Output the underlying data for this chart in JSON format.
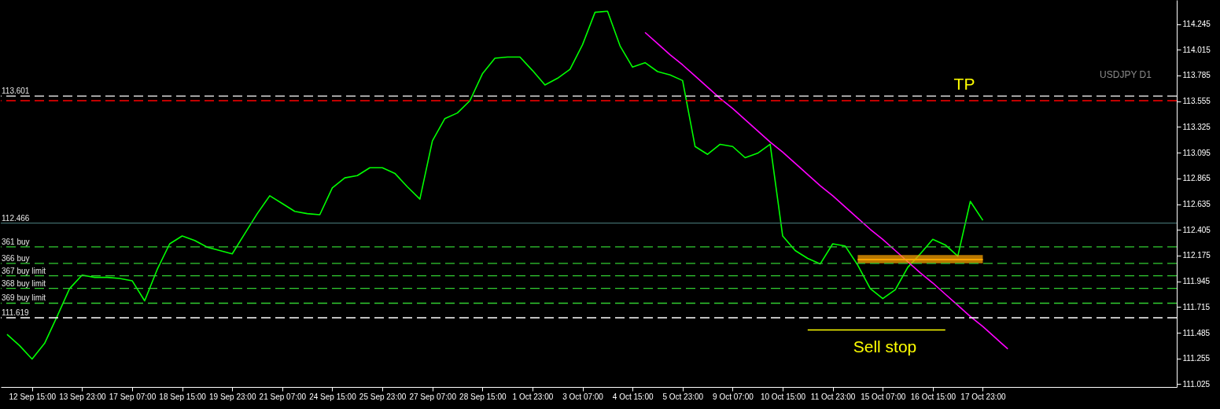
{
  "chart_data": {
    "type": "line",
    "categories": [
      null,
      null,
      "12 Sep 15:00",
      null,
      null,
      null,
      "13 Sep 23:00",
      null,
      null,
      null,
      "17 Sep 07:00",
      null,
      null,
      null,
      "18 Sep 15:00",
      null,
      null,
      null,
      "19 Sep 23:00",
      null,
      null,
      null,
      "21 Sep 07:00",
      null,
      null,
      null,
      "24 Sep 15:00",
      null,
      null,
      null,
      "25 Sep 23:00",
      null,
      null,
      null,
      "27 Sep 07:00",
      null,
      null,
      null,
      "28 Sep 15:00",
      null,
      null,
      null,
      "1 Oct 23:00",
      null,
      null,
      null,
      "3 Oct 07:00",
      null,
      null,
      null,
      "4 Oct 15:00",
      null,
      null,
      null,
      "5 Oct 23:00",
      null,
      null,
      null,
      "9 Oct 07:00",
      null,
      null,
      null,
      "10 Oct 15:00",
      null,
      null,
      null,
      "11 Oct 23:00",
      null,
      null,
      null,
      "15 Oct 07:00",
      null,
      null,
      null,
      "16 Oct 15:00",
      null,
      null,
      null,
      "17 Oct 23:00",
      null,
      null,
      null,
      null,
      null,
      null,
      null,
      null,
      null,
      null,
      null,
      null,
      null,
      null,
      null
    ],
    "ylim": [
      111.0,
      114.46
    ],
    "yticks": [
      111.025,
      111.255,
      111.485,
      111.715,
      111.945,
      112.175,
      112.405,
      112.635,
      112.865,
      113.095,
      113.325,
      113.555,
      113.785,
      114.015,
      114.245
    ],
    "series": [
      {
        "color": "#00ff00",
        "values": [
          111.47,
          111.37,
          111.25,
          111.39,
          111.63,
          111.88,
          112.0,
          111.98,
          111.98,
          111.97,
          111.95,
          111.77,
          112.05,
          112.28,
          112.35,
          112.31,
          112.25,
          112.22,
          112.19,
          112.37,
          112.55,
          112.71,
          112.64,
          112.57,
          112.55,
          112.54,
          112.78,
          112.87,
          112.89,
          112.96,
          112.96,
          112.91,
          112.79,
          112.68,
          113.2,
          113.4,
          113.45,
          113.56,
          113.8,
          113.94,
          113.95,
          113.95,
          113.83,
          113.7,
          113.76,
          113.84,
          114.06,
          114.35,
          114.36,
          114.05,
          113.86,
          113.9,
          113.82,
          113.79,
          113.74,
          113.15,
          113.08,
          113.17,
          113.15,
          113.05,
          113.09,
          113.17,
          112.35,
          112.22,
          112.15,
          112.1,
          112.28,
          112.26,
          112.09,
          111.88,
          111.79,
          111.87,
          112.07,
          112.19,
          112.32,
          112.27,
          112.17,
          112.66,
          112.49,
          null,
          null,
          null,
          null,
          null,
          null,
          null,
          null,
          null,
          null,
          null,
          null,
          null,
          null,
          null
        ]
      },
      {
        "color": "#ff00ff",
        "values": [
          null,
          null,
          null,
          null,
          null,
          null,
          null,
          null,
          null,
          null,
          null,
          null,
          null,
          null,
          null,
          null,
          null,
          null,
          null,
          null,
          null,
          null,
          null,
          null,
          null,
          null,
          null,
          null,
          null,
          null,
          null,
          null,
          null,
          null,
          null,
          null,
          null,
          null,
          null,
          null,
          null,
          null,
          null,
          null,
          null,
          null,
          null,
          null,
          null,
          null,
          null,
          114.17,
          114.07,
          113.97,
          113.88,
          113.78,
          113.68,
          113.58,
          113.49,
          113.39,
          113.29,
          113.19,
          113.1,
          113.0,
          112.9,
          112.8,
          112.71,
          112.61,
          112.51,
          112.41,
          112.32,
          112.22,
          112.12,
          112.02,
          111.93,
          111.83,
          111.73,
          111.63,
          111.54,
          111.44,
          111.34,
          null,
          null,
          null,
          null,
          null,
          null,
          null,
          null,
          null,
          null,
          null,
          null,
          null
        ]
      },
      {
        "color": "#ffa500",
        "values": [
          null,
          null,
          null,
          null,
          null,
          null,
          null,
          null,
          null,
          null,
          null,
          null,
          null,
          null,
          null,
          null,
          null,
          null,
          null,
          null,
          null,
          null,
          null,
          null,
          null,
          null,
          null,
          null,
          null,
          null,
          null,
          null,
          null,
          null,
          null,
          null,
          null,
          null,
          null,
          null,
          null,
          null,
          null,
          null,
          null,
          null,
          null,
          null,
          null,
          null,
          null,
          null,
          null,
          null,
          null,
          null,
          null,
          null,
          null,
          null,
          null,
          null,
          null,
          null,
          null,
          null,
          null,
          null,
          112.14,
          112.14,
          112.14,
          112.14,
          112.14,
          112.14,
          112.14,
          112.14,
          112.14,
          112.14,
          112.14,
          null,
          null,
          null,
          null,
          null,
          null,
          null,
          null,
          null,
          null,
          null,
          null,
          null,
          null,
          null
        ],
        "upper": [
          null,
          null,
          null,
          null,
          null,
          null,
          null,
          null,
          null,
          null,
          null,
          null,
          null,
          null,
          null,
          null,
          null,
          null,
          null,
          null,
          null,
          null,
          null,
          null,
          null,
          null,
          null,
          null,
          null,
          null,
          null,
          null,
          null,
          null,
          null,
          null,
          null,
          null,
          null,
          null,
          null,
          null,
          null,
          null,
          null,
          null,
          null,
          null,
          null,
          null,
          null,
          null,
          null,
          null,
          null,
          null,
          null,
          null,
          null,
          null,
          null,
          null,
          null,
          null,
          null,
          null,
          null,
          null,
          112.18,
          112.18,
          112.18,
          112.18,
          112.18,
          112.18,
          112.18,
          112.18,
          112.18,
          112.18,
          112.18,
          null,
          null,
          null,
          null,
          null,
          null,
          null,
          null,
          null,
          null,
          null,
          null,
          null,
          null,
          null
        ],
        "lower": [
          null,
          null,
          null,
          null,
          null,
          null,
          null,
          null,
          null,
          null,
          null,
          null,
          null,
          null,
          null,
          null,
          null,
          null,
          null,
          null,
          null,
          null,
          null,
          null,
          null,
          null,
          null,
          null,
          null,
          null,
          null,
          null,
          null,
          null,
          null,
          null,
          null,
          null,
          null,
          null,
          null,
          null,
          null,
          null,
          null,
          null,
          null,
          null,
          null,
          null,
          null,
          null,
          null,
          null,
          null,
          null,
          null,
          null,
          null,
          null,
          null,
          null,
          null,
          null,
          null,
          null,
          null,
          null,
          112.105,
          112.105,
          112.105,
          112.105,
          112.105,
          112.105,
          112.105,
          112.105,
          112.105,
          112.105,
          112.105,
          null,
          null,
          null,
          null,
          null,
          null,
          null,
          null,
          null,
          null,
          null,
          null,
          null,
          null,
          null
        ]
      },
      {
        "color": "#ffff00",
        "values": [
          null,
          null,
          null,
          null,
          null,
          null,
          null,
          null,
          null,
          null,
          null,
          null,
          null,
          null,
          null,
          null,
          null,
          null,
          null,
          null,
          null,
          null,
          null,
          null,
          null,
          null,
          null,
          null,
          null,
          null,
          null,
          null,
          null,
          null,
          null,
          null,
          null,
          null,
          null,
          null,
          null,
          null,
          null,
          null,
          null,
          null,
          null,
          null,
          null,
          null,
          null,
          null,
          null,
          null,
          null,
          null,
          null,
          null,
          null,
          null,
          null,
          null,
          null,
          null,
          111.51,
          111.51,
          111.51,
          111.51,
          111.51,
          111.51,
          111.51,
          111.51,
          111.51,
          111.51,
          111.51,
          111.51,
          null,
          null,
          null,
          null,
          null,
          null,
          null,
          null,
          null,
          null,
          null,
          null,
          null,
          null,
          null,
          null,
          null,
          null
        ]
      }
    ],
    "ref_lines": [
      {
        "axis": "y",
        "value": 113.601,
        "label": "113.601",
        "color": "#ffffff",
        "line_style": "dashed"
      },
      {
        "axis": "y",
        "value": 113.56,
        "color": "#ff0000",
        "line_style": "dashed"
      },
      {
        "axis": "y",
        "value": 112.466,
        "label": "112.466",
        "color": "#3f6b6b",
        "line_style": "solid"
      },
      {
        "axis": "y",
        "value": 112.252,
        "label": "361 buy",
        "color": "#32cd32",
        "line_style": "dashed"
      },
      {
        "axis": "y",
        "value": 112.105,
        "label": "366 buy",
        "color": "#32cd32",
        "line_style": "dashed"
      },
      {
        "axis": "y",
        "value": 111.994,
        "label": "367 buy limit",
        "color": "#32cd32",
        "line_style": "dashed"
      },
      {
        "axis": "y",
        "value": 111.882,
        "label": "368 buy limit",
        "color": "#32cd32",
        "line_style": "dashed"
      },
      {
        "axis": "y",
        "value": 111.749,
        "label": "369 buy limit",
        "color": "#32cd32",
        "line_style": "dashed"
      },
      {
        "axis": "y",
        "value": 111.619,
        "label": "111.619",
        "color": "#ffffff",
        "line_style": "dashed"
      }
    ],
    "annotations": [
      "TP",
      "Sell stop",
      "USDJPY D1"
    ]
  }
}
